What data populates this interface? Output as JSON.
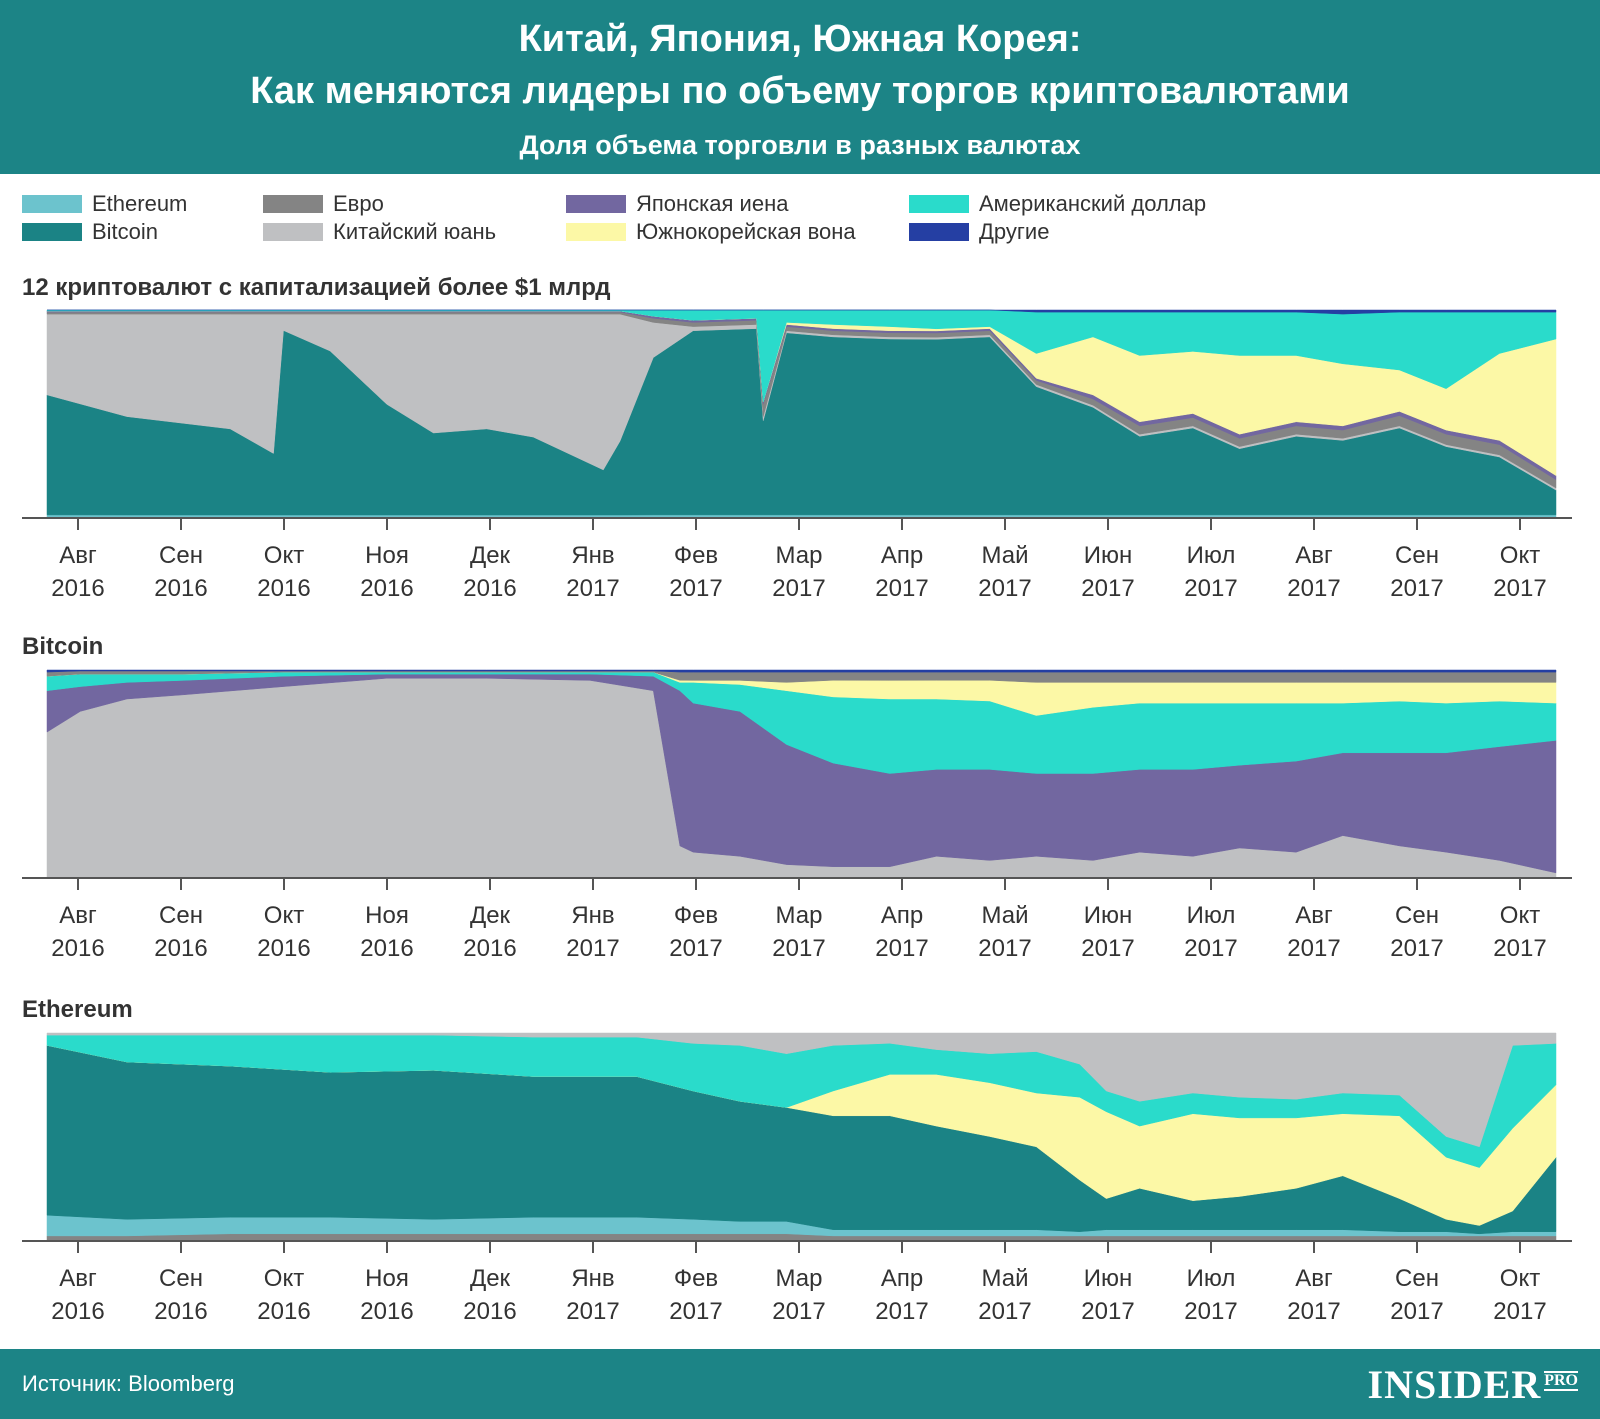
{
  "header": {
    "title_line1": "Китай, Япония, Южная Корея:",
    "title_line2": "Как меняются лидеры по объему торгов криптовалютами",
    "subtitle": "Доля объема торговли в разных валютах"
  },
  "legend": [
    {
      "label": "Ethereum",
      "color": "#6cc3cd"
    },
    {
      "label": "Bitcoin",
      "color": "#1b8385"
    },
    {
      "label": "Евро",
      "color": "#848484"
    },
    {
      "label": "Китайский юань",
      "color": "#bfc0c2"
    },
    {
      "label": "Японская иена",
      "color": "#7267a0"
    },
    {
      "label": "Южнокорейская вона",
      "color": "#fcf8a6"
    },
    {
      "label": "Американский доллар",
      "color": "#2adbcb"
    },
    {
      "label": "Другие",
      "color": "#253fa3"
    }
  ],
  "x_ticks": [
    {
      "month": "Авг",
      "year": "2016"
    },
    {
      "month": "Сен",
      "year": "2016"
    },
    {
      "month": "Окт",
      "year": "2016"
    },
    {
      "month": "Ноя",
      "year": "2016"
    },
    {
      "month": "Дек",
      "year": "2016"
    },
    {
      "month": "Янв",
      "year": "2017"
    },
    {
      "month": "Фев",
      "year": "2017"
    },
    {
      "month": "Мар",
      "year": "2017"
    },
    {
      "month": "Апр",
      "year": "2017"
    },
    {
      "month": "Май",
      "year": "2017"
    },
    {
      "month": "Июн",
      "year": "2017"
    },
    {
      "month": "Июл",
      "year": "2017"
    },
    {
      "month": "Авг",
      "year": "2017"
    },
    {
      "month": "Сен",
      "year": "2017"
    },
    {
      "month": "Окт",
      "year": "2017"
    }
  ],
  "footer": {
    "source": "Источник: Bloomberg",
    "logo_main": "INSIDER",
    "logo_pro": "PRO"
  },
  "chart_data": [
    {
      "type": "area",
      "stacked": true,
      "normalized": true,
      "title": "12 криптовалют с капитализацией более $1 млрд",
      "unit": "share",
      "x_range": [
        "2016-07-22",
        "2017-10-18"
      ],
      "ylim": [
        0,
        1
      ],
      "x": [
        "2016-07-22",
        "2016-08-15",
        "2016-09-15",
        "2016-09-28",
        "2016-10-01",
        "2016-10-15",
        "2016-11-01",
        "2016-11-15",
        "2016-12-01",
        "2016-12-15",
        "2017-01-05",
        "2017-01-10",
        "2017-01-20",
        "2017-02-01",
        "2017-02-20",
        "2017-02-22",
        "2017-03-01",
        "2017-03-15",
        "2017-04-01",
        "2017-04-15",
        "2017-05-01",
        "2017-05-15",
        "2017-06-01",
        "2017-06-15",
        "2017-07-01",
        "2017-07-15",
        "2017-08-01",
        "2017-08-15",
        "2017-09-01",
        "2017-09-15",
        "2017-10-01",
        "2017-10-18"
      ],
      "series": [
        {
          "name": "Ethereum",
          "color": "#6cc3cd",
          "values": [
            0.01,
            0.01,
            0.01,
            0.01,
            0.01,
            0.01,
            0.01,
            0.01,
            0.01,
            0.01,
            0.01,
            0.01,
            0.01,
            0.01,
            0.01,
            0.01,
            0.01,
            0.01,
            0.01,
            0.01,
            0.01,
            0.01,
            0.01,
            0.01,
            0.01,
            0.01,
            0.01,
            0.01,
            0.01,
            0.01,
            0.01,
            0.01
          ]
        },
        {
          "name": "Bitcoin",
          "color": "#1b8385",
          "values": [
            0.58,
            0.48,
            0.42,
            0.3,
            0.9,
            0.8,
            0.54,
            0.4,
            0.42,
            0.38,
            0.22,
            0.36,
            0.76,
            0.89,
            0.9,
            0.45,
            0.88,
            0.86,
            0.85,
            0.84,
            0.86,
            0.62,
            0.52,
            0.38,
            0.42,
            0.32,
            0.38,
            0.36,
            0.42,
            0.33,
            0.28,
            0.12
          ]
        },
        {
          "name": "Китайский юань",
          "color": "#bfc0c2",
          "values": [
            0.39,
            0.5,
            0.56,
            0.68,
            0.08,
            0.18,
            0.44,
            0.58,
            0.56,
            0.6,
            0.76,
            0.62,
            0.17,
            0.02,
            0.02,
            0.02,
            0.01,
            0.01,
            0.01,
            0.01,
            0.01,
            0.01,
            0.01,
            0.01,
            0.01,
            0.01,
            0.01,
            0.01,
            0.01,
            0.01,
            0.01,
            0.01
          ]
        },
        {
          "name": "Евро",
          "color": "#848484",
          "values": [
            0.01,
            0.01,
            0.01,
            0.01,
            0.01,
            0.01,
            0.01,
            0.01,
            0.01,
            0.01,
            0.01,
            0.01,
            0.02,
            0.02,
            0.02,
            0.06,
            0.02,
            0.02,
            0.02,
            0.02,
            0.02,
            0.02,
            0.03,
            0.04,
            0.04,
            0.04,
            0.04,
            0.04,
            0.05,
            0.05,
            0.05,
            0.04
          ]
        },
        {
          "name": "Японская иена",
          "color": "#7267a0",
          "values": [
            0.005,
            0.005,
            0.005,
            0.005,
            0.005,
            0.005,
            0.005,
            0.005,
            0.005,
            0.005,
            0.005,
            0.005,
            0.01,
            0.01,
            0.01,
            0.01,
            0.01,
            0.01,
            0.01,
            0.01,
            0.01,
            0.01,
            0.02,
            0.02,
            0.02,
            0.02,
            0.02,
            0.02,
            0.02,
            0.02,
            0.02,
            0.02
          ]
        },
        {
          "name": "Южнокорейская вона",
          "color": "#fcf8a6",
          "values": [
            0,
            0,
            0,
            0,
            0,
            0,
            0,
            0,
            0,
            0,
            0,
            0,
            0,
            0,
            0,
            0,
            0.01,
            0.02,
            0.02,
            0.01,
            0.01,
            0.12,
            0.28,
            0.32,
            0.3,
            0.38,
            0.32,
            0.3,
            0.2,
            0.2,
            0.42,
            0.66
          ]
        },
        {
          "name": "Американский доллар",
          "color": "#2adbcb",
          "values": [
            0.005,
            0.005,
            0.005,
            0.005,
            0.005,
            0.005,
            0.005,
            0.005,
            0.005,
            0.005,
            0.005,
            0.005,
            0.03,
            0.05,
            0.04,
            0.44,
            0.06,
            0.07,
            0.08,
            0.09,
            0.08,
            0.2,
            0.12,
            0.21,
            0.19,
            0.21,
            0.21,
            0.24,
            0.28,
            0.37,
            0.2,
            0.13
          ]
        },
        {
          "name": "Другие",
          "color": "#253fa3",
          "values": [
            0,
            0,
            0,
            0,
            0,
            0,
            0,
            0,
            0,
            0,
            0,
            0,
            0,
            0,
            0,
            0,
            0,
            0,
            0,
            0,
            0,
            0.01,
            0.01,
            0.01,
            0.01,
            0.01,
            0.01,
            0.02,
            0.01,
            0.01,
            0.01,
            0.01
          ]
        }
      ]
    },
    {
      "type": "area",
      "stacked": true,
      "normalized": true,
      "title": "Bitcoin",
      "unit": "share",
      "x_range": [
        "2016-07-22",
        "2017-10-18"
      ],
      "ylim": [
        0,
        1
      ],
      "x": [
        "2016-07-22",
        "2016-08-01",
        "2016-08-15",
        "2016-09-01",
        "2016-10-01",
        "2016-11-01",
        "2016-12-01",
        "2017-01-01",
        "2017-01-20",
        "2017-01-28",
        "2017-02-01",
        "2017-02-15",
        "2017-03-01",
        "2017-03-15",
        "2017-04-01",
        "2017-04-15",
        "2017-05-01",
        "2017-05-15",
        "2017-06-01",
        "2017-06-15",
        "2017-07-01",
        "2017-07-15",
        "2017-08-01",
        "2017-08-15",
        "2017-09-01",
        "2017-09-15",
        "2017-10-01",
        "2017-10-18"
      ],
      "series": [
        {
          "name": "Китайский юань",
          "color": "#bfc0c2",
          "values": [
            0.7,
            0.8,
            0.86,
            0.88,
            0.92,
            0.96,
            0.96,
            0.95,
            0.9,
            0.15,
            0.12,
            0.1,
            0.06,
            0.05,
            0.05,
            0.1,
            0.08,
            0.1,
            0.08,
            0.12,
            0.1,
            0.14,
            0.12,
            0.2,
            0.15,
            0.12,
            0.08,
            0.02
          ]
        },
        {
          "name": "Японская иена",
          "color": "#7267a0",
          "values": [
            0.2,
            0.12,
            0.08,
            0.07,
            0.05,
            0.02,
            0.02,
            0.03,
            0.07,
            0.75,
            0.72,
            0.7,
            0.58,
            0.5,
            0.45,
            0.42,
            0.44,
            0.4,
            0.42,
            0.4,
            0.42,
            0.4,
            0.44,
            0.4,
            0.45,
            0.48,
            0.55,
            0.64
          ]
        },
        {
          "name": "Американский доллар",
          "color": "#2adbcb",
          "values": [
            0.07,
            0.06,
            0.04,
            0.03,
            0.02,
            0.01,
            0.01,
            0.01,
            0.02,
            0.04,
            0.1,
            0.13,
            0.26,
            0.32,
            0.36,
            0.34,
            0.33,
            0.28,
            0.32,
            0.32,
            0.32,
            0.3,
            0.28,
            0.24,
            0.25,
            0.24,
            0.22,
            0.18
          ]
        },
        {
          "name": "Южнокорейская вона",
          "color": "#fcf8a6",
          "values": [
            0,
            0,
            0,
            0,
            0,
            0,
            0,
            0,
            0,
            0.01,
            0.01,
            0.02,
            0.04,
            0.08,
            0.09,
            0.09,
            0.1,
            0.16,
            0.12,
            0.1,
            0.1,
            0.1,
            0.1,
            0.1,
            0.09,
            0.1,
            0.09,
            0.1
          ]
        },
        {
          "name": "Евро",
          "color": "#848484",
          "values": [
            0.02,
            0.015,
            0.015,
            0.015,
            0.005,
            0.005,
            0.005,
            0.005,
            0.005,
            0.04,
            0.04,
            0.04,
            0.05,
            0.04,
            0.04,
            0.04,
            0.04,
            0.05,
            0.05,
            0.05,
            0.05,
            0.05,
            0.05,
            0.05,
            0.05,
            0.05,
            0.05,
            0.05
          ]
        },
        {
          "name": "Другие",
          "color": "#253fa3",
          "values": [
            0.01,
            0.005,
            0.005,
            0.005,
            0.005,
            0.005,
            0.005,
            0.005,
            0.005,
            0.01,
            0.01,
            0.01,
            0.01,
            0.01,
            0.01,
            0.01,
            0.01,
            0.01,
            0.01,
            0.01,
            0.01,
            0.01,
            0.01,
            0.01,
            0.01,
            0.01,
            0.01,
            0.01
          ]
        }
      ]
    },
    {
      "type": "area",
      "stacked": true,
      "normalized": true,
      "title": "Ethereum",
      "unit": "share",
      "x_range": [
        "2016-07-22",
        "2017-10-18"
      ],
      "ylim": [
        0,
        1
      ],
      "x": [
        "2016-07-22",
        "2016-08-15",
        "2016-09-15",
        "2016-10-15",
        "2016-11-15",
        "2016-12-15",
        "2017-01-15",
        "2017-02-01",
        "2017-02-15",
        "2017-03-01",
        "2017-03-15",
        "2017-04-01",
        "2017-04-15",
        "2017-05-01",
        "2017-05-15",
        "2017-05-28",
        "2017-06-05",
        "2017-06-15",
        "2017-07-01",
        "2017-07-15",
        "2017-08-01",
        "2017-08-15",
        "2017-09-01",
        "2017-09-15",
        "2017-09-25",
        "2017-10-05",
        "2017-10-18"
      ],
      "series": [
        {
          "name": "Евро",
          "color": "#848484",
          "values": [
            0.02,
            0.02,
            0.03,
            0.03,
            0.03,
            0.03,
            0.03,
            0.03,
            0.03,
            0.03,
            0.02,
            0.02,
            0.02,
            0.02,
            0.02,
            0.02,
            0.02,
            0.02,
            0.02,
            0.02,
            0.02,
            0.02,
            0.02,
            0.02,
            0.02,
            0.02,
            0.02
          ]
        },
        {
          "name": "Ethereum",
          "color": "#6cc3cd",
          "values": [
            0.1,
            0.08,
            0.08,
            0.08,
            0.07,
            0.08,
            0.08,
            0.07,
            0.06,
            0.06,
            0.03,
            0.03,
            0.03,
            0.03,
            0.03,
            0.02,
            0.03,
            0.03,
            0.03,
            0.03,
            0.03,
            0.03,
            0.02,
            0.02,
            0.01,
            0.02,
            0.02
          ]
        },
        {
          "name": "Bitcoin",
          "color": "#1b8385",
          "values": [
            0.82,
            0.76,
            0.73,
            0.7,
            0.72,
            0.68,
            0.68,
            0.62,
            0.58,
            0.55,
            0.55,
            0.55,
            0.5,
            0.45,
            0.4,
            0.25,
            0.15,
            0.2,
            0.14,
            0.16,
            0.2,
            0.26,
            0.16,
            0.06,
            0.04,
            0.1,
            0.36
          ]
        },
        {
          "name": "Южнокорейская вона",
          "color": "#fcf8a6",
          "values": [
            0,
            0,
            0,
            0,
            0,
            0,
            0,
            0,
            0,
            0,
            0.12,
            0.2,
            0.25,
            0.26,
            0.26,
            0.4,
            0.42,
            0.3,
            0.42,
            0.38,
            0.34,
            0.3,
            0.4,
            0.3,
            0.28,
            0.4,
            0.35
          ]
        },
        {
          "name": "Американский доллар",
          "color": "#2adbcb",
          "values": [
            0.05,
            0.13,
            0.15,
            0.18,
            0.17,
            0.19,
            0.19,
            0.23,
            0.27,
            0.26,
            0.22,
            0.15,
            0.12,
            0.14,
            0.2,
            0.16,
            0.1,
            0.12,
            0.1,
            0.1,
            0.09,
            0.1,
            0.1,
            0.1,
            0.1,
            0.4,
            0.2
          ]
        },
        {
          "name": "Китайский юань",
          "color": "#bfc0c2",
          "values": [
            0.01,
            0.01,
            0.01,
            0.01,
            0.01,
            0.02,
            0.02,
            0.05,
            0.06,
            0.1,
            0.06,
            0.05,
            0.08,
            0.1,
            0.09,
            0.15,
            0.28,
            0.33,
            0.29,
            0.31,
            0.32,
            0.29,
            0.3,
            0.5,
            0.55,
            0.06,
            0.05
          ]
        }
      ]
    }
  ]
}
